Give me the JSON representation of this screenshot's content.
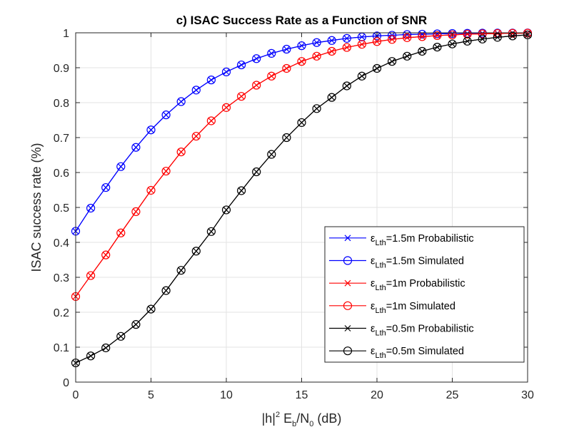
{
  "chart_data": {
    "type": "line",
    "title": "c) ISAC Success Rate as a Function of SNR",
    "xlabel": {
      "base": "|h|",
      "sup": "2",
      "mid1": " E",
      "sub1": "b",
      "mid2": "/N",
      "sub2": "0",
      "tail": "  (dB)"
    },
    "ylabel": "ISAC success rate (%)",
    "xlim": [
      0,
      30
    ],
    "ylim": [
      0,
      1
    ],
    "xticks": [
      0,
      5,
      10,
      15,
      20,
      25,
      30
    ],
    "yticks": [
      0,
      0.1,
      0.2,
      0.3,
      0.4,
      0.5,
      0.6,
      0.7,
      0.8,
      0.9,
      1
    ],
    "grid": true,
    "legend_position": "bottom-right",
    "x": [
      0,
      1,
      2,
      3,
      4,
      5,
      6,
      7,
      8,
      9,
      10,
      11,
      12,
      13,
      14,
      15,
      16,
      17,
      18,
      19,
      20,
      21,
      22,
      23,
      24,
      25,
      26,
      27,
      28,
      29,
      30
    ],
    "series": [
      {
        "name": "εLth=1.5m Probabilistic",
        "label_sym": "ε",
        "label_sub": "Lth",
        "label_rest": "=1.5m Probabilistic",
        "color": "#0000ff",
        "marker": "x",
        "values": [
          0.432,
          0.498,
          0.557,
          0.617,
          0.672,
          0.722,
          0.765,
          0.803,
          0.836,
          0.865,
          0.888,
          0.908,
          0.926,
          0.941,
          0.953,
          0.963,
          0.972,
          0.978,
          0.984,
          0.988,
          0.991,
          0.993,
          0.995,
          0.996,
          0.997,
          0.998,
          0.9985,
          0.999,
          0.9992,
          0.9994,
          0.9995
        ]
      },
      {
        "name": "εLth=1.5m Simulated",
        "label_sym": "ε",
        "label_sub": "Lth",
        "label_rest": "=1.5m Simulated",
        "color": "#0000ff",
        "marker": "o",
        "values": [
          0.432,
          0.498,
          0.557,
          0.617,
          0.672,
          0.722,
          0.765,
          0.803,
          0.836,
          0.865,
          0.888,
          0.908,
          0.926,
          0.941,
          0.953,
          0.963,
          0.972,
          0.978,
          0.984,
          0.988,
          0.991,
          0.993,
          0.995,
          0.996,
          0.997,
          0.998,
          0.9985,
          0.999,
          0.9992,
          0.9994,
          0.9995
        ]
      },
      {
        "name": "εLth=1m Probabilistic",
        "label_sym": "ε",
        "label_sub": "Lth",
        "label_rest": "=1m Probabilistic",
        "color": "#ff0000",
        "marker": "x",
        "values": [
          0.245,
          0.305,
          0.364,
          0.427,
          0.488,
          0.549,
          0.604,
          0.659,
          0.704,
          0.748,
          0.786,
          0.818,
          0.85,
          0.876,
          0.898,
          0.918,
          0.933,
          0.947,
          0.958,
          0.967,
          0.975,
          0.981,
          0.986,
          0.989,
          0.992,
          0.994,
          0.996,
          0.997,
          0.998,
          0.9985,
          0.999
        ]
      },
      {
        "name": "εLth=1m Simulated",
        "label_sym": "ε",
        "label_sub": "Lth",
        "label_rest": "=1m Simulated",
        "color": "#ff0000",
        "marker": "o",
        "values": [
          0.245,
          0.305,
          0.364,
          0.427,
          0.488,
          0.549,
          0.604,
          0.659,
          0.704,
          0.748,
          0.786,
          0.818,
          0.85,
          0.876,
          0.898,
          0.918,
          0.933,
          0.947,
          0.958,
          0.967,
          0.975,
          0.981,
          0.986,
          0.989,
          0.992,
          0.994,
          0.996,
          0.997,
          0.998,
          0.9985,
          0.999
        ]
      },
      {
        "name": "εLth=0.5m Probabilistic",
        "label_sym": "ε",
        "label_sub": "Lth",
        "label_rest": "=0.5m Probabilistic",
        "color": "#000000",
        "marker": "x",
        "values": [
          0.055,
          0.075,
          0.098,
          0.131,
          0.165,
          0.209,
          0.262,
          0.32,
          0.375,
          0.431,
          0.493,
          0.548,
          0.602,
          0.652,
          0.7,
          0.743,
          0.783,
          0.815,
          0.848,
          0.876,
          0.898,
          0.918,
          0.933,
          0.947,
          0.959,
          0.968,
          0.976,
          0.982,
          0.987,
          0.991,
          0.994
        ]
      },
      {
        "name": "εLth=0.5m Simulated",
        "label_sym": "ε",
        "label_sub": "Lth",
        "label_rest": "=0.5m Simulated",
        "color": "#000000",
        "marker": "o",
        "values": [
          0.055,
          0.075,
          0.098,
          0.131,
          0.165,
          0.209,
          0.262,
          0.32,
          0.375,
          0.431,
          0.493,
          0.548,
          0.602,
          0.652,
          0.7,
          0.743,
          0.783,
          0.815,
          0.848,
          0.876,
          0.898,
          0.918,
          0.933,
          0.947,
          0.959,
          0.968,
          0.976,
          0.982,
          0.987,
          0.991,
          0.994
        ]
      }
    ]
  }
}
